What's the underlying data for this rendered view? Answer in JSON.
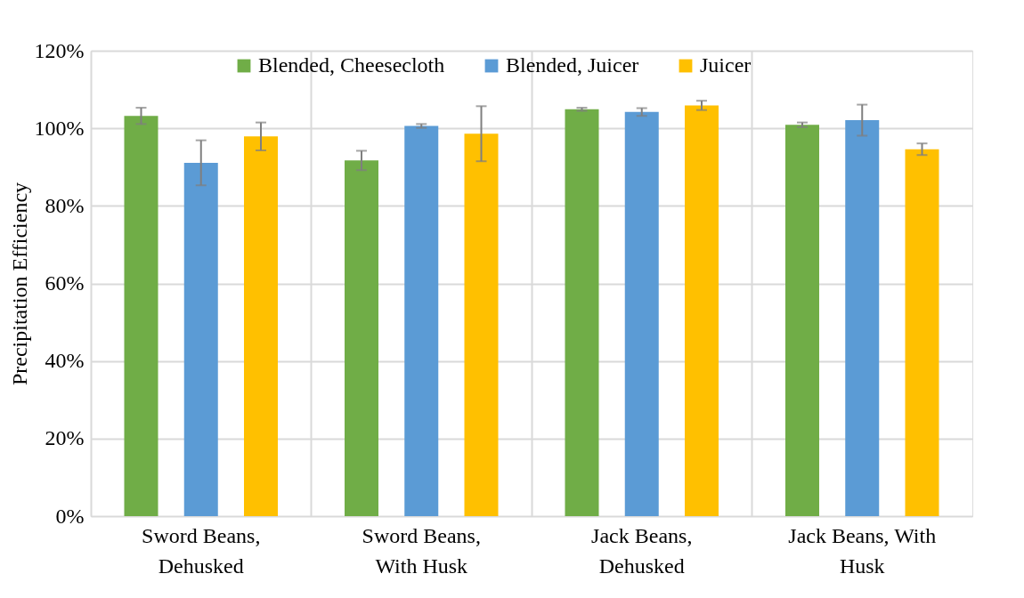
{
  "chart_data": {
    "type": "bar",
    "ylabel": "Precipitation Efficiency",
    "categories": [
      "Sword Beans,\nDehusked",
      "Sword Beans,\nWith Husk",
      "Jack Beans,\nDehusked",
      "Jack Beans, With\nHusk"
    ],
    "series": [
      {
        "name": "Blended, Cheesecloth",
        "color": "#70ad47",
        "values": [
          103.2,
          91.7,
          104.9,
          100.9
        ],
        "errors": [
          2.1,
          2.5,
          0.4,
          0.6
        ]
      },
      {
        "name": "Blended, Juicer",
        "color": "#5b9bd5",
        "values": [
          91.1,
          100.6,
          104.2,
          102.1
        ],
        "errors": [
          5.8,
          0.5,
          1.0,
          4.0
        ]
      },
      {
        "name": "Juicer",
        "color": "#ffc000",
        "values": [
          97.9,
          98.6,
          105.9,
          94.6
        ],
        "errors": [
          3.6,
          7.1,
          1.2,
          1.5
        ]
      }
    ],
    "ylim": [
      0,
      120
    ],
    "yticks": [
      {
        "value": 0,
        "label": "0%"
      },
      {
        "value": 20,
        "label": "20%"
      },
      {
        "value": 40,
        "label": "40%"
      },
      {
        "value": 60,
        "label": "60%"
      },
      {
        "value": 80,
        "label": "80%"
      },
      {
        "value": 100,
        "label": "100%"
      },
      {
        "value": 120,
        "label": "120%"
      }
    ],
    "grid": true,
    "legend": "top"
  }
}
